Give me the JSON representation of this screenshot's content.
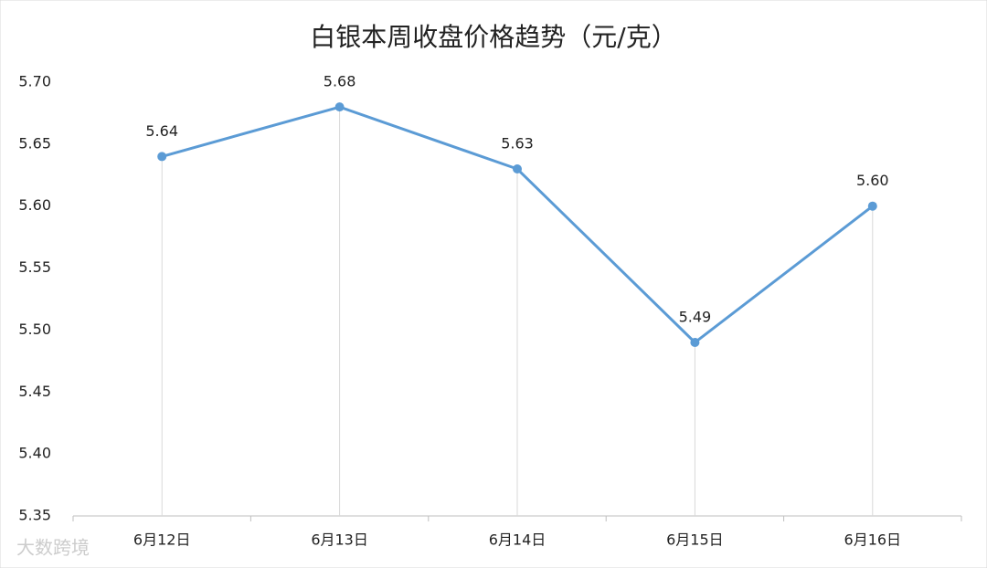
{
  "chart_data": {
    "type": "line",
    "title": "白银本周收盘价格趋势（元/克）",
    "categories": [
      "6月12日",
      "6月13日",
      "6月14日",
      "6月15日",
      "6月16日"
    ],
    "series": [
      {
        "name": "白银",
        "color": "#5b9bd5",
        "values": [
          5.64,
          5.68,
          5.63,
          5.49,
          5.6
        ],
        "value_labels": [
          "5.64",
          "5.68",
          "5.63",
          "5.49",
          "5.60"
        ]
      }
    ],
    "ylim": [
      5.35,
      5.7
    ],
    "yticks": [
      {
        "value": 5.35,
        "label": "5.35"
      },
      {
        "value": 5.4,
        "label": "5.40"
      },
      {
        "value": 5.45,
        "label": "5.45"
      },
      {
        "value": 5.5,
        "label": "5.50"
      },
      {
        "value": 5.55,
        "label": "5.55"
      },
      {
        "value": 5.6,
        "label": "5.60"
      },
      {
        "value": 5.65,
        "label": "5.65"
      },
      {
        "value": 5.7,
        "label": "5.70"
      }
    ],
    "drop_lines": true,
    "watermark": "大数跨境"
  }
}
